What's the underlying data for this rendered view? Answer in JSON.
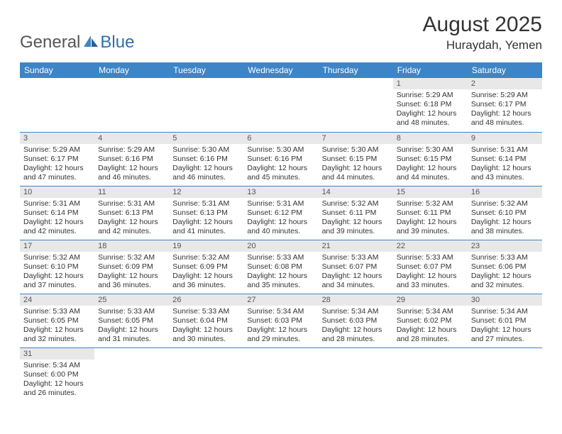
{
  "logo": {
    "part1": "General",
    "part2": "Blue"
  },
  "title": "August 2025",
  "location": "Huraydah, Yemen",
  "colors": {
    "header_bg": "#3d85c6",
    "header_text": "#ffffff",
    "daynum_bg": "#e8e8e8",
    "cell_border": "#3d85c6",
    "logo_gray": "#555555",
    "logo_blue": "#2f6fa8"
  },
  "weekdays": [
    "Sunday",
    "Monday",
    "Tuesday",
    "Wednesday",
    "Thursday",
    "Friday",
    "Saturday"
  ],
  "weeks": [
    [
      null,
      null,
      null,
      null,
      null,
      {
        "n": "1",
        "sr": "Sunrise: 5:29 AM",
        "ss": "Sunset: 6:18 PM",
        "d1": "Daylight: 12 hours",
        "d2": "and 48 minutes."
      },
      {
        "n": "2",
        "sr": "Sunrise: 5:29 AM",
        "ss": "Sunset: 6:17 PM",
        "d1": "Daylight: 12 hours",
        "d2": "and 48 minutes."
      }
    ],
    [
      {
        "n": "3",
        "sr": "Sunrise: 5:29 AM",
        "ss": "Sunset: 6:17 PM",
        "d1": "Daylight: 12 hours",
        "d2": "and 47 minutes."
      },
      {
        "n": "4",
        "sr": "Sunrise: 5:29 AM",
        "ss": "Sunset: 6:16 PM",
        "d1": "Daylight: 12 hours",
        "d2": "and 46 minutes."
      },
      {
        "n": "5",
        "sr": "Sunrise: 5:30 AM",
        "ss": "Sunset: 6:16 PM",
        "d1": "Daylight: 12 hours",
        "d2": "and 46 minutes."
      },
      {
        "n": "6",
        "sr": "Sunrise: 5:30 AM",
        "ss": "Sunset: 6:16 PM",
        "d1": "Daylight: 12 hours",
        "d2": "and 45 minutes."
      },
      {
        "n": "7",
        "sr": "Sunrise: 5:30 AM",
        "ss": "Sunset: 6:15 PM",
        "d1": "Daylight: 12 hours",
        "d2": "and 44 minutes."
      },
      {
        "n": "8",
        "sr": "Sunrise: 5:30 AM",
        "ss": "Sunset: 6:15 PM",
        "d1": "Daylight: 12 hours",
        "d2": "and 44 minutes."
      },
      {
        "n": "9",
        "sr": "Sunrise: 5:31 AM",
        "ss": "Sunset: 6:14 PM",
        "d1": "Daylight: 12 hours",
        "d2": "and 43 minutes."
      }
    ],
    [
      {
        "n": "10",
        "sr": "Sunrise: 5:31 AM",
        "ss": "Sunset: 6:14 PM",
        "d1": "Daylight: 12 hours",
        "d2": "and 42 minutes."
      },
      {
        "n": "11",
        "sr": "Sunrise: 5:31 AM",
        "ss": "Sunset: 6:13 PM",
        "d1": "Daylight: 12 hours",
        "d2": "and 42 minutes."
      },
      {
        "n": "12",
        "sr": "Sunrise: 5:31 AM",
        "ss": "Sunset: 6:13 PM",
        "d1": "Daylight: 12 hours",
        "d2": "and 41 minutes."
      },
      {
        "n": "13",
        "sr": "Sunrise: 5:31 AM",
        "ss": "Sunset: 6:12 PM",
        "d1": "Daylight: 12 hours",
        "d2": "and 40 minutes."
      },
      {
        "n": "14",
        "sr": "Sunrise: 5:32 AM",
        "ss": "Sunset: 6:11 PM",
        "d1": "Daylight: 12 hours",
        "d2": "and 39 minutes."
      },
      {
        "n": "15",
        "sr": "Sunrise: 5:32 AM",
        "ss": "Sunset: 6:11 PM",
        "d1": "Daylight: 12 hours",
        "d2": "and 39 minutes."
      },
      {
        "n": "16",
        "sr": "Sunrise: 5:32 AM",
        "ss": "Sunset: 6:10 PM",
        "d1": "Daylight: 12 hours",
        "d2": "and 38 minutes."
      }
    ],
    [
      {
        "n": "17",
        "sr": "Sunrise: 5:32 AM",
        "ss": "Sunset: 6:10 PM",
        "d1": "Daylight: 12 hours",
        "d2": "and 37 minutes."
      },
      {
        "n": "18",
        "sr": "Sunrise: 5:32 AM",
        "ss": "Sunset: 6:09 PM",
        "d1": "Daylight: 12 hours",
        "d2": "and 36 minutes."
      },
      {
        "n": "19",
        "sr": "Sunrise: 5:32 AM",
        "ss": "Sunset: 6:09 PM",
        "d1": "Daylight: 12 hours",
        "d2": "and 36 minutes."
      },
      {
        "n": "20",
        "sr": "Sunrise: 5:33 AM",
        "ss": "Sunset: 6:08 PM",
        "d1": "Daylight: 12 hours",
        "d2": "and 35 minutes."
      },
      {
        "n": "21",
        "sr": "Sunrise: 5:33 AM",
        "ss": "Sunset: 6:07 PM",
        "d1": "Daylight: 12 hours",
        "d2": "and 34 minutes."
      },
      {
        "n": "22",
        "sr": "Sunrise: 5:33 AM",
        "ss": "Sunset: 6:07 PM",
        "d1": "Daylight: 12 hours",
        "d2": "and 33 minutes."
      },
      {
        "n": "23",
        "sr": "Sunrise: 5:33 AM",
        "ss": "Sunset: 6:06 PM",
        "d1": "Daylight: 12 hours",
        "d2": "and 32 minutes."
      }
    ],
    [
      {
        "n": "24",
        "sr": "Sunrise: 5:33 AM",
        "ss": "Sunset: 6:05 PM",
        "d1": "Daylight: 12 hours",
        "d2": "and 32 minutes."
      },
      {
        "n": "25",
        "sr": "Sunrise: 5:33 AM",
        "ss": "Sunset: 6:05 PM",
        "d1": "Daylight: 12 hours",
        "d2": "and 31 minutes."
      },
      {
        "n": "26",
        "sr": "Sunrise: 5:33 AM",
        "ss": "Sunset: 6:04 PM",
        "d1": "Daylight: 12 hours",
        "d2": "and 30 minutes."
      },
      {
        "n": "27",
        "sr": "Sunrise: 5:34 AM",
        "ss": "Sunset: 6:03 PM",
        "d1": "Daylight: 12 hours",
        "d2": "and 29 minutes."
      },
      {
        "n": "28",
        "sr": "Sunrise: 5:34 AM",
        "ss": "Sunset: 6:03 PM",
        "d1": "Daylight: 12 hours",
        "d2": "and 28 minutes."
      },
      {
        "n": "29",
        "sr": "Sunrise: 5:34 AM",
        "ss": "Sunset: 6:02 PM",
        "d1": "Daylight: 12 hours",
        "d2": "and 28 minutes."
      },
      {
        "n": "30",
        "sr": "Sunrise: 5:34 AM",
        "ss": "Sunset: 6:01 PM",
        "d1": "Daylight: 12 hours",
        "d2": "and 27 minutes."
      }
    ],
    [
      {
        "n": "31",
        "sr": "Sunrise: 5:34 AM",
        "ss": "Sunset: 6:00 PM",
        "d1": "Daylight: 12 hours",
        "d2": "and 26 minutes."
      },
      null,
      null,
      null,
      null,
      null,
      null
    ]
  ]
}
